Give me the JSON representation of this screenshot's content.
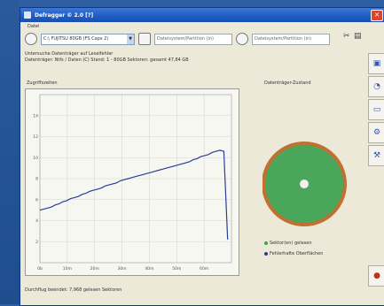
{
  "window": {
    "title": "Defragger © 2.0 [?]",
    "close_symbol": "✕"
  },
  "menu": {
    "items": [
      "Datei"
    ]
  },
  "toolbar": {
    "drive_combo": "C:\\ FUJITSU 80GB (FS Caps 2)",
    "field_1": "Dateisystem/Partition (in)",
    "field_2": "Dateisystem/Partition (in)"
  },
  "status": {
    "line1": "Untersuche Datenträger auf Leselfehler",
    "line2": "Datenträger: Ntfs / Daten (C) Stand: 1 - 80GB Sektoren: gesamt 47,84 GB"
  },
  "chart_panel_label": "Zugriffszeiten",
  "disk_panel_label": "Datenträger-Zustand",
  "legend": {
    "item1": "Sektor(en) gelesen",
    "item2": "Fehlerhafte Oberflächen"
  },
  "bottom_status": "Durchflug beendet: 7,968 gelesen Sektoren",
  "chart_data": {
    "type": "line",
    "x": [
      0,
      2,
      4,
      6,
      8,
      10,
      12,
      14,
      16,
      18,
      20,
      22,
      24,
      26,
      28,
      30,
      32,
      34,
      36,
      38,
      40,
      42,
      44,
      46,
      48,
      50,
      52,
      54,
      56,
      58,
      60,
      62,
      64,
      66,
      68,
      70,
      72,
      74,
      76,
      78,
      80,
      82,
      84,
      86,
      88,
      90,
      92,
      94,
      96,
      98
    ],
    "y": [
      5.0,
      5.1,
      5.2,
      5.3,
      5.5,
      5.6,
      5.8,
      5.9,
      6.1,
      6.2,
      6.3,
      6.5,
      6.6,
      6.8,
      6.9,
      7.0,
      7.1,
      7.3,
      7.4,
      7.5,
      7.6,
      7.8,
      7.9,
      8.0,
      8.1,
      8.2,
      8.3,
      8.4,
      8.5,
      8.6,
      8.7,
      8.8,
      8.9,
      9.0,
      9.1,
      9.2,
      9.3,
      9.4,
      9.5,
      9.6,
      9.8,
      9.9,
      10.1,
      10.2,
      10.3,
      10.5,
      10.6,
      10.7,
      10.6,
      2.2
    ],
    "xlim": [
      0,
      100
    ],
    "ylim": [
      0,
      16
    ],
    "x_tick_labels": [
      "0b",
      "10m",
      "20m",
      "30m",
      "40m",
      "50m",
      "60m"
    ],
    "y_tick_labels": [
      "2",
      "4",
      "6",
      "8",
      "10",
      "12",
      "14"
    ],
    "grid": true,
    "line_color": "#2a3e94"
  },
  "colors": {
    "disk_green": "#4aa65a",
    "disk_border": "#c07030",
    "legend_green": "#3aa64a",
    "legend_blue": "#2a3e94"
  },
  "side_buttons": [
    {
      "icon": "analyze-icon",
      "glyph": "▣"
    },
    {
      "icon": "pie-icon",
      "glyph": "◔"
    },
    {
      "icon": "monitor-icon",
      "glyph": "▭"
    },
    {
      "icon": "tools-icon",
      "glyph": "⚙"
    },
    {
      "icon": "scan-icon",
      "glyph": "⚒"
    }
  ],
  "stop_button_glyph": "●"
}
